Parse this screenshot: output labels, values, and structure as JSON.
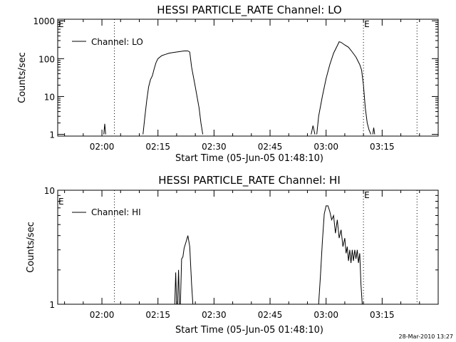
{
  "footer": {
    "timestamp": "28-Mar-2010 13:27"
  },
  "chart_data": [
    {
      "type": "line",
      "title": "HESSI PARTICLE_RATE Channel: LO",
      "xlabel": "Start Time (05-Jun-05 01:48:10)",
      "ylabel": "Counts/sec",
      "yscale": "log",
      "ylim": [
        0.9,
        1100
      ],
      "xlim": [
        "01:48:10",
        "03:30:00"
      ],
      "x_ticks": [
        "02:00",
        "02:15",
        "02:30",
        "02:45",
        "03:00",
        "03:15"
      ],
      "y_ticks": [
        "1",
        "10",
        "100",
        "1000"
      ],
      "legend": {
        "position": "top-left",
        "entries": [
          "Channel: LO"
        ]
      },
      "markers": [
        {
          "label": "",
          "time": "02:03:20",
          "style": "dotted"
        },
        {
          "label": "E",
          "time": "03:10:00",
          "style": "dotted"
        },
        {
          "label": "",
          "time": "03:24:20",
          "style": "dotted"
        }
      ],
      "corner_label": "E",
      "series": [
        {
          "name": "Channel: LO",
          "segments": [
            [
              [
                "02:00:30",
                1
              ],
              [
                "02:00:45",
                1.9
              ],
              [
                "02:01:00",
                1
              ]
            ],
            [
              [
                "02:11:00",
                1
              ],
              [
                "02:11:30",
                3
              ],
              [
                "02:12:00",
                8
              ],
              [
                "02:12:30",
                18
              ],
              [
                "02:13:00",
                28
              ],
              [
                "02:13:30",
                35
              ],
              [
                "02:14:00",
                55
              ],
              [
                "02:14:30",
                80
              ],
              [
                "02:15:00",
                100
              ],
              [
                "02:16:00",
                120
              ],
              [
                "02:17:00",
                130
              ],
              [
                "02:18:00",
                140
              ],
              [
                "02:19:00",
                145
              ],
              [
                "02:20:00",
                150
              ],
              [
                "02:21:00",
                155
              ],
              [
                "02:22:00",
                160
              ],
              [
                "02:23:00",
                160
              ],
              [
                "02:23:30",
                150
              ],
              [
                "02:24:00",
                60
              ],
              [
                "02:25:00",
                18
              ],
              [
                "02:26:00",
                5
              ],
              [
                "02:26:30",
                2
              ],
              [
                "02:27:00",
                1
              ]
            ],
            [
              [
                "02:56:00",
                1
              ],
              [
                "02:56:30",
                1.7
              ],
              [
                "02:57:00",
                1
              ]
            ],
            [
              [
                "02:57:30",
                1
              ],
              [
                "02:58:00",
                3
              ],
              [
                "02:59:00",
                10
              ],
              [
                "03:00:00",
                30
              ],
              [
                "03:01:00",
                70
              ],
              [
                "03:02:00",
                140
              ],
              [
                "03:03:00",
                220
              ],
              [
                "03:03:30",
                280
              ],
              [
                "03:04:00",
                270
              ],
              [
                "03:05:00",
                230
              ],
              [
                "03:06:00",
                200
              ],
              [
                "03:07:00",
                150
              ],
              [
                "03:08:00",
                110
              ],
              [
                "03:09:00",
                70
              ],
              [
                "03:09:30",
                50
              ],
              [
                "03:10:00",
                20
              ],
              [
                "03:10:30",
                5
              ],
              [
                "03:11:00",
                2
              ],
              [
                "03:11:30",
                1.3
              ],
              [
                "03:12:00",
                1
              ]
            ],
            [
              [
                "03:12:30",
                1
              ],
              [
                "03:12:45",
                1.5
              ],
              [
                "03:13:00",
                1
              ]
            ]
          ]
        }
      ]
    },
    {
      "type": "line",
      "title": "HESSI PARTICLE_RATE Channel: HI",
      "xlabel": "Start Time (05-Jun-05 01:48:10)",
      "ylabel": "Counts/sec",
      "yscale": "log",
      "ylim": [
        1,
        10
      ],
      "xlim": [
        "01:48:10",
        "03:30:00"
      ],
      "x_ticks": [
        "02:00",
        "02:15",
        "02:30",
        "02:45",
        "03:00",
        "03:15"
      ],
      "y_ticks": [
        "1",
        "10"
      ],
      "legend": {
        "position": "top-left",
        "entries": [
          "Channel: HI"
        ]
      },
      "markers": [
        {
          "label": "",
          "time": "02:03:20",
          "style": "dotted"
        },
        {
          "label": "E",
          "time": "03:10:00",
          "style": "dotted"
        },
        {
          "label": "",
          "time": "03:24:20",
          "style": "dotted"
        }
      ],
      "corner_label": "E",
      "series": [
        {
          "name": "Channel: HI",
          "segments": [
            [
              [
                "02:19:30",
                1
              ],
              [
                "02:19:45",
                1.9
              ],
              [
                "02:20:00",
                1
              ]
            ],
            [
              [
                "02:20:15",
                1
              ],
              [
                "02:20:30",
                2
              ],
              [
                "02:20:45",
                1
              ]
            ],
            [
              [
                "02:21:00",
                1
              ],
              [
                "02:21:20",
                2.5
              ],
              [
                "02:21:40",
                2.6
              ],
              [
                "02:22:00",
                3.1
              ],
              [
                "02:22:30",
                3.5
              ],
              [
                "02:23:00",
                4
              ],
              [
                "02:23:30",
                3.2
              ],
              [
                "02:24:00",
                1.5
              ],
              [
                "02:24:20",
                1
              ]
            ],
            [
              [
                "02:58:00",
                1
              ],
              [
                "02:58:30",
                1.8
              ],
              [
                "02:59:00",
                3.5
              ],
              [
                "02:59:30",
                6.2
              ],
              [
                "03:00:00",
                7.3
              ],
              [
                "03:00:30",
                7.3
              ],
              [
                "03:01:00",
                6.5
              ],
              [
                "03:01:30",
                5.5
              ],
              [
                "03:02:00",
                6
              ],
              [
                "03:02:30",
                4.2
              ],
              [
                "03:03:00",
                5.5
              ],
              [
                "03:03:30",
                3.8
              ],
              [
                "03:04:00",
                4.5
              ],
              [
                "03:04:30",
                3.2
              ],
              [
                "03:05:00",
                3.8
              ],
              [
                "03:05:20",
                2.8
              ],
              [
                "03:05:40",
                3.2
              ],
              [
                "03:06:00",
                2.4
              ],
              [
                "03:06:20",
                3
              ],
              [
                "03:06:40",
                2.3
              ],
              [
                "03:07:00",
                3
              ],
              [
                "03:07:20",
                2.4
              ],
              [
                "03:07:40",
                3
              ],
              [
                "03:08:00",
                2.5
              ],
              [
                "03:08:20",
                3
              ],
              [
                "03:08:40",
                2.3
              ],
              [
                "03:09:00",
                2.8
              ],
              [
                "03:09:20",
                1.5
              ],
              [
                "03:09:40",
                1
              ]
            ]
          ]
        }
      ]
    }
  ]
}
